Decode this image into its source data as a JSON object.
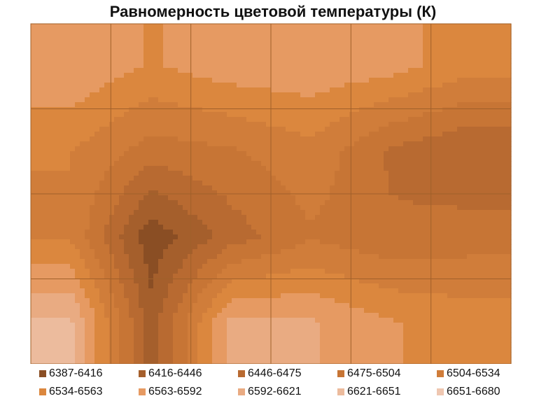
{
  "chart_data": {
    "type": "heatmap",
    "title": "Равномерность цветовой температуры (К)",
    "unit": "K",
    "grid": true,
    "rows": 4,
    "cols": 6,
    "values": [
      [
        6590,
        6560,
        6580,
        6585,
        6575,
        6545
      ],
      [
        6535,
        6490,
        6500,
        6525,
        6470,
        6445
      ],
      [
        6530,
        6395,
        6460,
        6500,
        6480,
        6490
      ],
      [
        6625,
        6430,
        6600,
        6595,
        6565,
        6550
      ]
    ],
    "legend": [
      {
        "label": "6387-6416",
        "color": "#8a4e24"
      },
      {
        "label": "6416-6446",
        "color": "#a55f2c"
      },
      {
        "label": "6446-6475",
        "color": "#b86a31"
      },
      {
        "label": "6475-6504",
        "color": "#c77535"
      },
      {
        "label": "6504-6534",
        "color": "#d07d3a"
      },
      {
        "label": "6534-6563",
        "color": "#db873e"
      },
      {
        "label": "6563-6592",
        "color": "#e69a62"
      },
      {
        "label": "6592-6621",
        "color": "#e9ab82"
      },
      {
        "label": "6621-6651",
        "color": "#ecbb9d"
      },
      {
        "label": "6651-6680",
        "color": "#efc7b1"
      }
    ],
    "legend_position": "bottom"
  }
}
